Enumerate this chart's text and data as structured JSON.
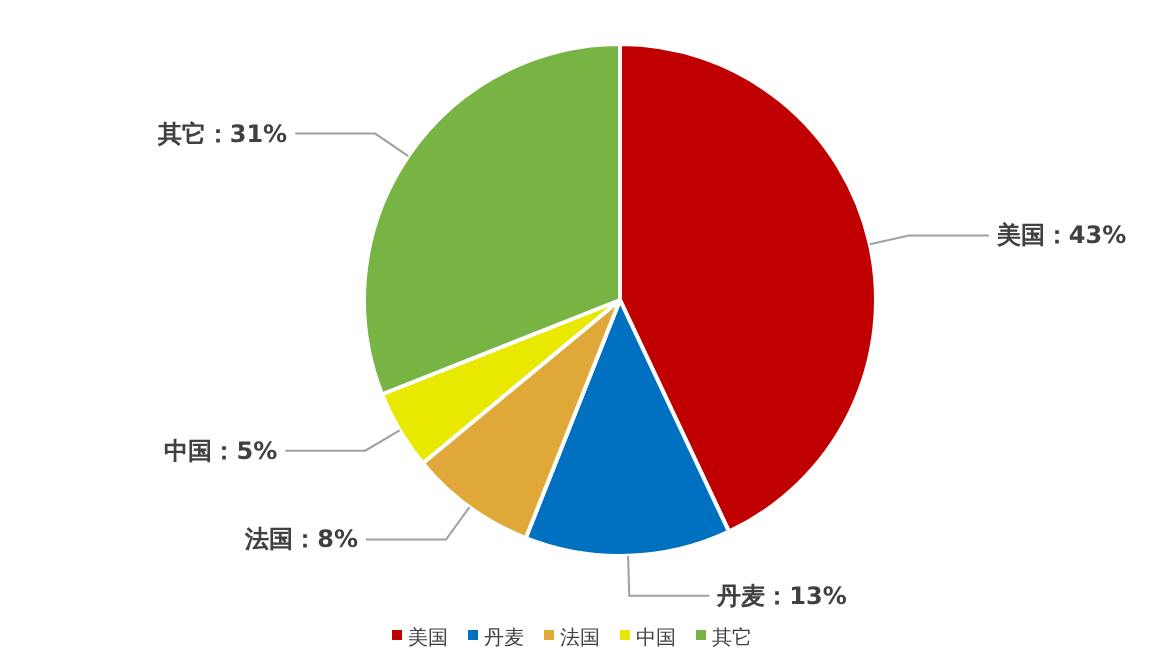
{
  "chart_data": {
    "type": "pie",
    "categories": [
      "美国",
      "丹麦",
      "法国",
      "中国",
      "其它"
    ],
    "values": [
      43,
      13,
      8,
      5,
      31
    ],
    "value_labels": [
      "美国：43%",
      "丹麦：13%",
      "法国：8%",
      "中国：5%",
      "其它：31%"
    ],
    "colors": [
      "#c00000",
      "#0070c0",
      "#e0a838",
      "#e8e800",
      "#78b444"
    ],
    "legend": "bottom"
  }
}
